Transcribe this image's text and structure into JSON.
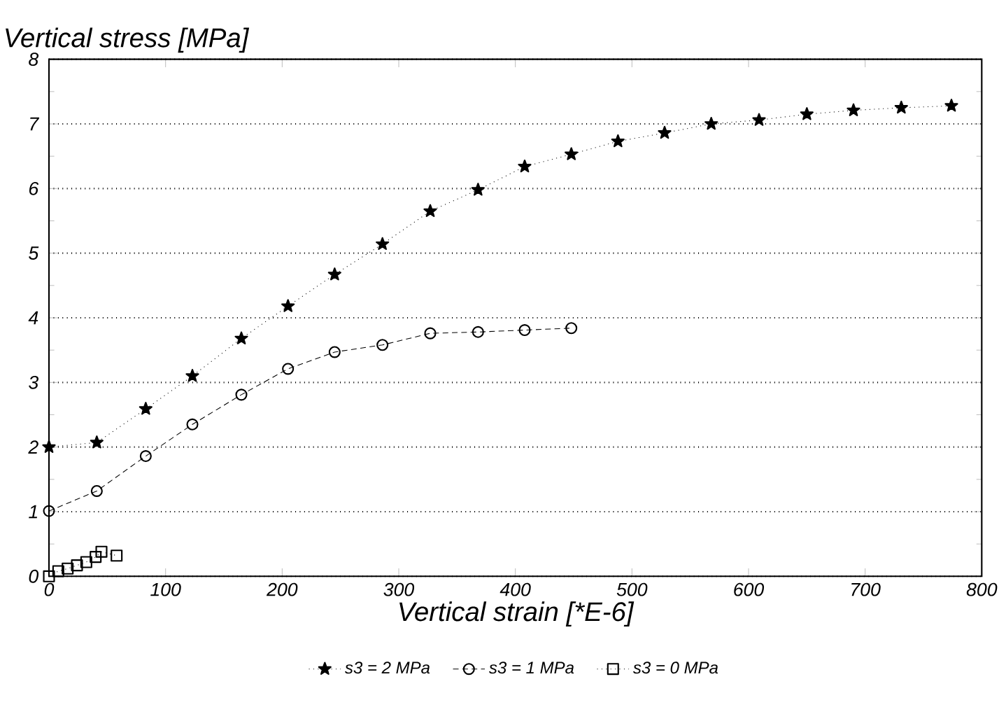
{
  "chart_data": {
    "type": "line",
    "xlabel": "Vertical strain [*E-6]",
    "ylabel": "Vertical stress [MPa]",
    "xlim": [
      0,
      800
    ],
    "ylim": [
      0,
      8
    ],
    "xticks": [
      0,
      100,
      200,
      300,
      400,
      500,
      600,
      700,
      800
    ],
    "yticks": [
      0,
      1,
      2,
      3,
      4,
      5,
      6,
      7,
      8
    ],
    "grid": "y",
    "legend": "bottom",
    "series": [
      {
        "name": "s3 = 2 MPa",
        "color": "#000000",
        "marker": "star",
        "line_style": "dotted",
        "x": [
          0,
          41,
          83,
          123,
          165,
          205,
          245,
          286,
          327,
          368,
          408,
          448,
          488,
          528,
          568,
          609,
          650,
          690,
          731,
          774
        ],
        "values": [
          2.0,
          2.07,
          2.59,
          3.1,
          3.68,
          4.18,
          4.67,
          5.14,
          5.65,
          5.98,
          6.34,
          6.53,
          6.73,
          6.86,
          7.0,
          7.06,
          7.15,
          7.21,
          7.25,
          7.28
        ]
      },
      {
        "name": "s3 = 1 MPa",
        "color": "#000000",
        "marker": "circle",
        "line_style": "dashed",
        "x": [
          0,
          41,
          83,
          123,
          165,
          205,
          245,
          286,
          327,
          368,
          408,
          448
        ],
        "values": [
          1.01,
          1.32,
          1.86,
          2.35,
          2.81,
          3.21,
          3.47,
          3.58,
          3.76,
          3.78,
          3.81,
          3.84
        ]
      },
      {
        "name": "s3 = 0 MPa",
        "color": "#000000",
        "marker": "square",
        "line_style": "dotted",
        "x": [
          0,
          8,
          16,
          24,
          32,
          40,
          45,
          58
        ],
        "values": [
          0.0,
          0.08,
          0.12,
          0.17,
          0.22,
          0.3,
          0.38,
          0.32
        ]
      }
    ]
  }
}
